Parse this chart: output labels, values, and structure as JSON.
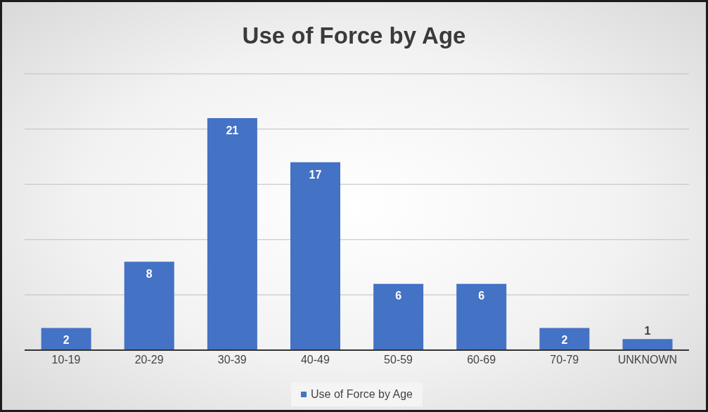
{
  "chart_data": {
    "type": "bar",
    "title": "Use of Force by Age",
    "categories": [
      "10-19",
      "20-29",
      "30-39",
      "40-49",
      "50-59",
      "60-69",
      "70-79",
      "UNKNOWN"
    ],
    "series": [
      {
        "name": "Use of Force by Age",
        "color": "#4472c4",
        "values": [
          2,
          8,
          21,
          17,
          6,
          6,
          2,
          1
        ]
      }
    ],
    "ylim": [
      0,
      25
    ],
    "yticks": [
      {
        "value": 0,
        "label": null
      },
      {
        "value": 5,
        "label": null
      },
      {
        "value": 10,
        "label": null
      },
      {
        "value": 15,
        "label": null
      },
      {
        "value": 20,
        "label": null
      },
      {
        "value": 25,
        "label": null
      }
    ],
    "tick_labels": "x",
    "grid": "y",
    "legend": "bottom",
    "data_labels": true
  }
}
